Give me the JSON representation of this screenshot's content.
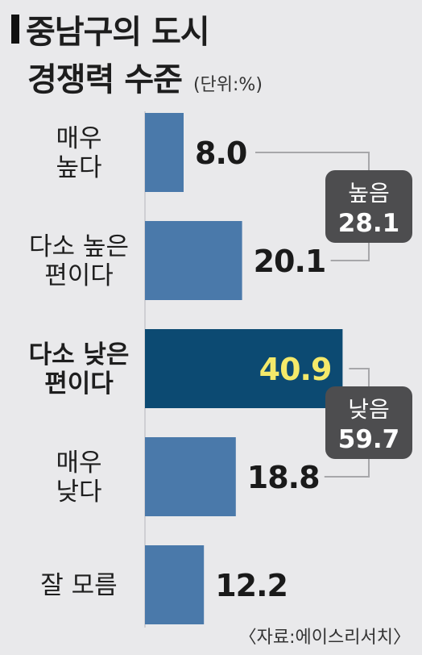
{
  "title": {
    "line1": "중남구의 도시",
    "line2": "경쟁력 수준",
    "unit": "(단위:%)"
  },
  "source": "〈자료:에이스리서치〉",
  "colors": {
    "bar": "#4a79aa",
    "highlight_bar": "#0c4a72",
    "highlight_value": "#f4e96a",
    "bracket": "#a7a7aa",
    "summary_box": "#4d4d4f",
    "summary_text": "#ffffff",
    "background": "#e9e9eb"
  },
  "chart_data": {
    "type": "bar",
    "orientation": "horizontal",
    "categories": [
      [
        "매우",
        "높다"
      ],
      [
        "다소 높은",
        "편이다"
      ],
      [
        "다소 낮은",
        "편이다"
      ],
      [
        "매우",
        "낮다"
      ],
      [
        "잘 모름"
      ]
    ],
    "values": [
      8.0,
      20.1,
      40.9,
      18.8,
      12.2
    ],
    "value_labels": [
      "8.0",
      "20.1",
      "40.9",
      "18.8",
      "12.2"
    ],
    "highlight_index": 2,
    "groups": [
      {
        "label": "높음",
        "value": "28.1",
        "from": 0,
        "to": 1
      },
      {
        "label": "낮음",
        "value": "59.7",
        "from": 2,
        "to": 3
      }
    ],
    "unit": "%"
  }
}
